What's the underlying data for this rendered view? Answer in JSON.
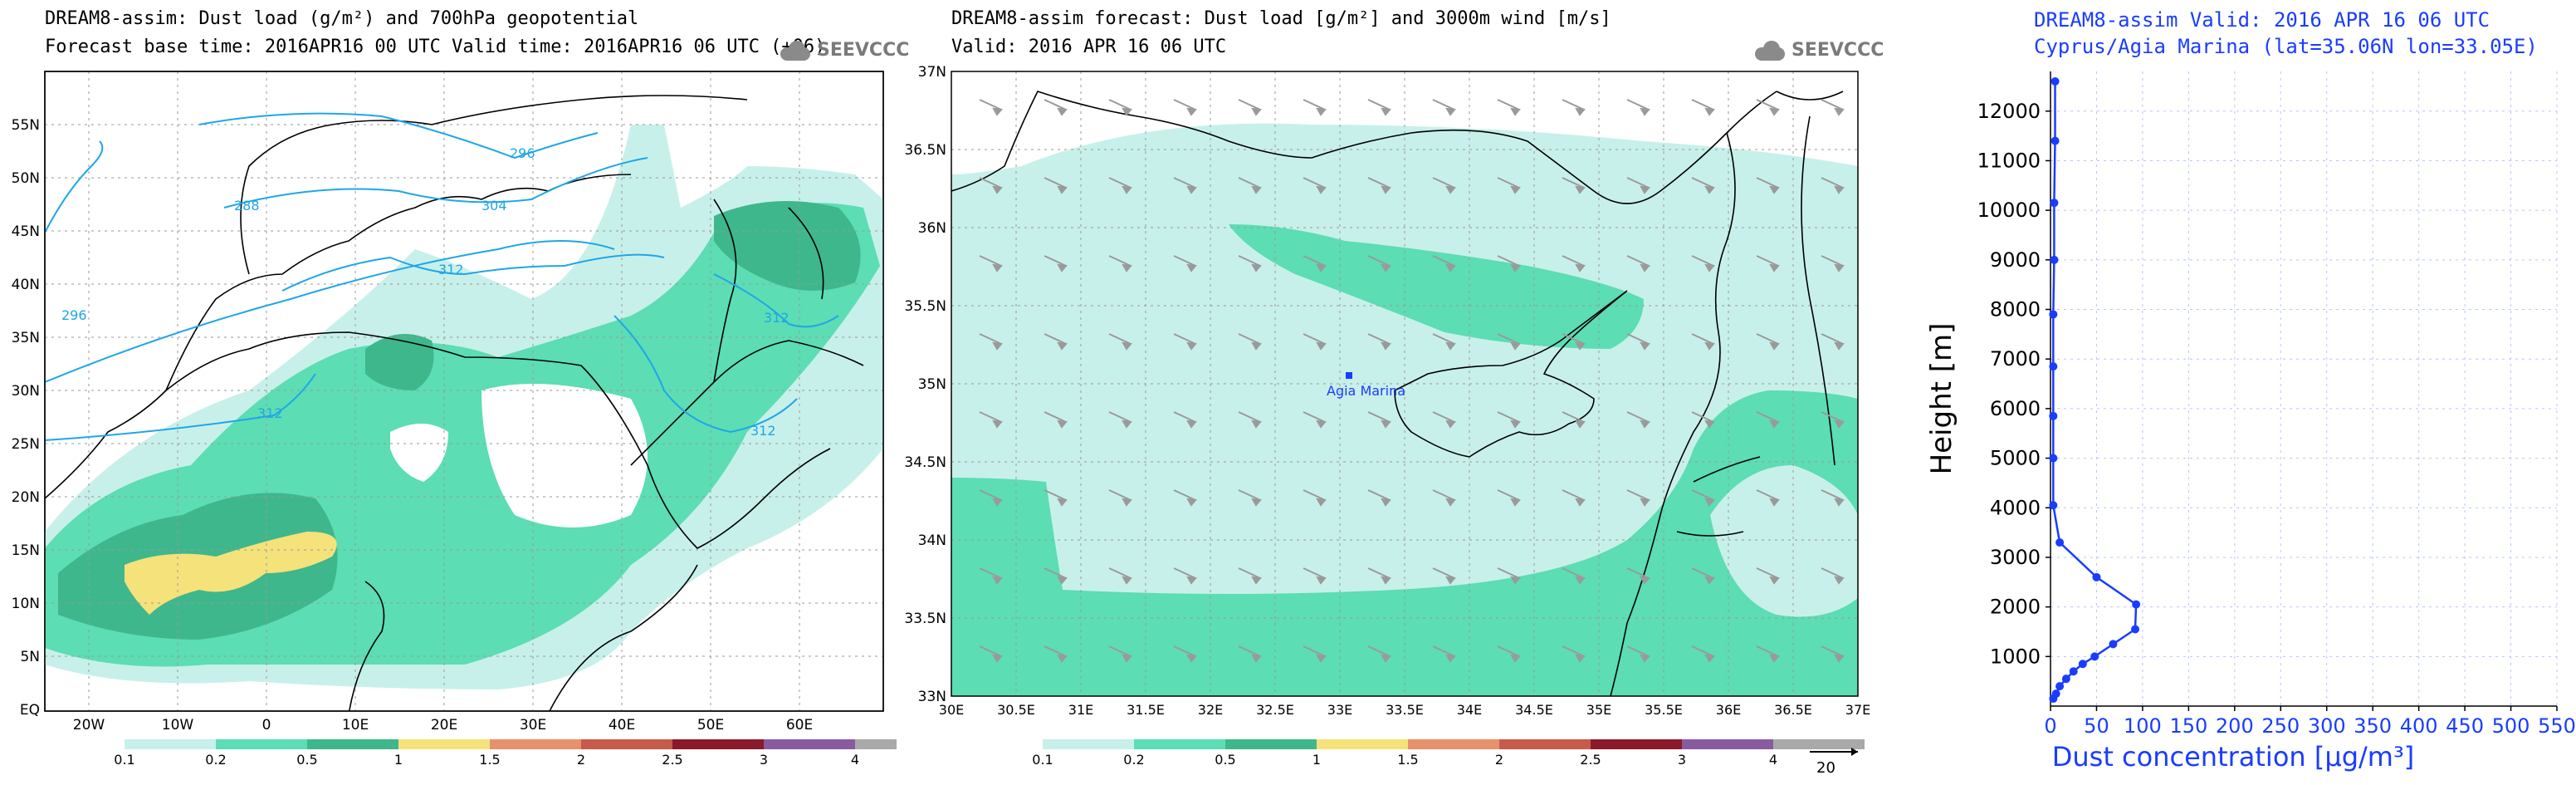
{
  "panels": {
    "left": {
      "title_line1": "DREAM8-assim: Dust load (g/m²) and 700hPa geopotential",
      "title_line2": "Forecast base time: 2016APR16 00 UTC  Valid time: 2016APR16 06 UTC  (+06)",
      "logo_text": "SEEVCCC",
      "lat_labels": [
        "55N",
        "50N",
        "45N",
        "40N",
        "35N",
        "30N",
        "25N",
        "20N",
        "15N",
        "10N",
        "5N",
        "EQ"
      ],
      "lon_labels": [
        "20W",
        "10W",
        "0",
        "10E",
        "20E",
        "30E",
        "40E",
        "50E",
        "60E"
      ],
      "contour_labels": [
        "296",
        "288",
        "304",
        "312",
        "296",
        "312",
        "312",
        "312"
      ],
      "legend": {
        "labels": [
          "0.1",
          "0.2",
          "0.5",
          "1",
          "1.5",
          "2",
          "2.5",
          "3",
          "4"
        ],
        "colors": [
          "#c8f0ea",
          "#5cddb4",
          "#3fb78c",
          "#f5e27a",
          "#e8906a",
          "#c85a4a",
          "#8a1a2a",
          "#8a5aa0",
          "#a9a9a9"
        ]
      }
    },
    "middle": {
      "title_line1": "DREAM8-assim forecast: Dust load [g/m²] and 3000m wind [m/s]",
      "title_line2": "Valid: 2016 APR 16  06 UTC",
      "logo_text": "SEEVCCC",
      "lat_labels": [
        "37N",
        "36.5N",
        "36N",
        "35.5N",
        "35N",
        "34.5N",
        "34N",
        "33.5N",
        "33N"
      ],
      "lon_labels": [
        "30E",
        "30.5E",
        "31E",
        "31.5E",
        "32E",
        "32.5E",
        "33E",
        "33.5E",
        "34E",
        "34.5E",
        "35E",
        "35.5E",
        "36E",
        "36.5E",
        "37E"
      ],
      "site_label": "Agia Marina",
      "legend": {
        "labels": [
          "0.1",
          "0.2",
          "0.5",
          "1",
          "1.5",
          "2",
          "2.5",
          "3",
          "4"
        ],
        "colors": [
          "#c8f0ea",
          "#5cddb4",
          "#3fb78c",
          "#f5e27a",
          "#e8906a",
          "#c85a4a",
          "#8a1a2a",
          "#8a5aa0",
          "#a9a9a9"
        ]
      },
      "wind_ref_label": "20"
    },
    "right": {
      "title_line1": "DREAM8-assim   Valid: 2016 APR 16   06 UTC",
      "title_line2": "Cyprus/Agia Marina (lat=35.06N lon=33.05E)"
    }
  },
  "chart_data": {
    "type": "line",
    "title": "",
    "xlabel": "Dust concentration [µg/m³]",
    "ylabel": "Height [m]",
    "xlim": [
      0,
      550
    ],
    "ylim": [
      0,
      12800
    ],
    "x_ticks": [
      0,
      50,
      100,
      150,
      200,
      250,
      300,
      350,
      400,
      450,
      500,
      550
    ],
    "y_ticks": [
      1000,
      2000,
      3000,
      4000,
      5000,
      6000,
      7000,
      8000,
      9000,
      10000,
      11000,
      12000
    ],
    "grid": true,
    "series": [
      {
        "color": "#1a3cff",
        "points": [
          [
            5,
            12600
          ],
          [
            5,
            11400
          ],
          [
            4,
            10150
          ],
          [
            4,
            9000
          ],
          [
            3,
            7900
          ],
          [
            3,
            6850
          ],
          [
            3,
            5850
          ],
          [
            3,
            5000
          ],
          [
            3,
            4050
          ],
          [
            10,
            3300
          ],
          [
            50,
            2600
          ],
          [
            93,
            2050
          ],
          [
            92,
            1550
          ],
          [
            68,
            1250
          ],
          [
            48,
            1000
          ],
          [
            35,
            850
          ],
          [
            25,
            700
          ],
          [
            17,
            550
          ],
          [
            10,
            400
          ],
          [
            6,
            250
          ],
          [
            3,
            150
          ]
        ]
      }
    ]
  }
}
